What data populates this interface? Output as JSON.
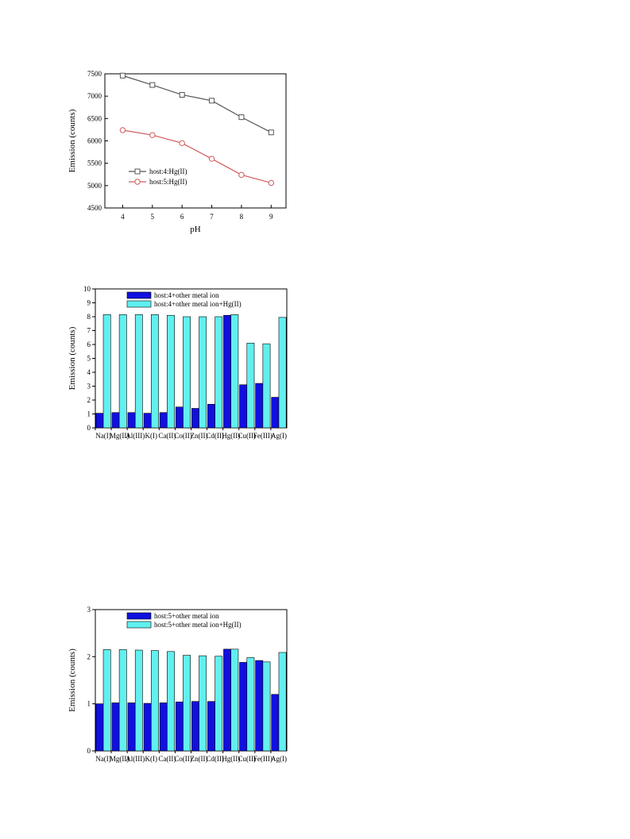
{
  "chart_data": [
    {
      "type": "line",
      "xlabel": "pH",
      "ylabel": "Emission (counts)",
      "x": [
        4,
        5,
        6,
        7,
        8,
        9
      ],
      "xlim": [
        3.4,
        9.5
      ],
      "ylim": [
        4500,
        7500
      ],
      "yticks": [
        4500,
        5000,
        5500,
        6000,
        6500,
        7000,
        7500
      ],
      "legend_position": "bottom-left",
      "series": [
        {
          "name": "host:4:Hg(II)",
          "marker": "square",
          "color": "#555555",
          "values": [
            7460,
            7250,
            7030,
            6900,
            6530,
            6190
          ]
        },
        {
          "name": "host:5:Hg(II)",
          "marker": "circle",
          "color": "#d05a5a",
          "values": [
            6240,
            6130,
            5950,
            5600,
            5240,
            5060
          ]
        }
      ]
    },
    {
      "type": "bar",
      "xlabel": "",
      "ylabel": "Emission (counts)",
      "ylim": [
        0,
        10
      ],
      "yticks": [
        0,
        1,
        2,
        3,
        4,
        5,
        6,
        7,
        8,
        9,
        10
      ],
      "legend_position": "top-left",
      "categories": [
        "Na(I)",
        "Mg(II)",
        "Al(III)",
        "K(I)",
        "Ca(II)",
        "Co(II)",
        "Zn(II)",
        "Cd(II)",
        "Hg(II)",
        "Cu(II)",
        "Fe(III)",
        "Ag(I)"
      ],
      "series": [
        {
          "name": "host:4+other metal ion",
          "color": "#1010e0",
          "values": [
            1.05,
            1.1,
            1.1,
            1.05,
            1.1,
            1.5,
            1.4,
            1.7,
            8.1,
            3.1,
            3.2,
            2.2
          ]
        },
        {
          "name": "host:4+other metal ion+Hg(II)",
          "color": "#60f0f0",
          "values": [
            8.15,
            8.15,
            8.15,
            8.15,
            8.1,
            8.0,
            8.0,
            8.0,
            8.15,
            6.1,
            6.05,
            7.95
          ]
        }
      ]
    },
    {
      "type": "bar",
      "xlabel": "",
      "ylabel": "Emission (counts)",
      "ylim": [
        0,
        3
      ],
      "yticks": [
        0,
        1,
        2,
        3
      ],
      "legend_position": "top-left",
      "categories": [
        "Na(I)",
        "Mg(II)",
        "Al(III)",
        "K(I)",
        "Ca(II)",
        "Co(II)",
        "Zn(II)",
        "Cd(II)",
        "Hg(II)",
        "Cu(II)",
        "Fe(III)",
        "Ag(I)"
      ],
      "series": [
        {
          "name": "host:5+other metal ion",
          "color": "#1010e0",
          "values": [
            1.0,
            1.02,
            1.02,
            1.01,
            1.02,
            1.04,
            1.05,
            1.05,
            2.16,
            1.88,
            1.92,
            1.2
          ]
        },
        {
          "name": "host:5+other metal ion+Hg(II)",
          "color": "#60f0f0",
          "values": [
            2.15,
            2.15,
            2.14,
            2.13,
            2.11,
            2.03,
            2.02,
            2.01,
            2.16,
            1.98,
            1.89,
            2.09
          ]
        }
      ]
    }
  ]
}
